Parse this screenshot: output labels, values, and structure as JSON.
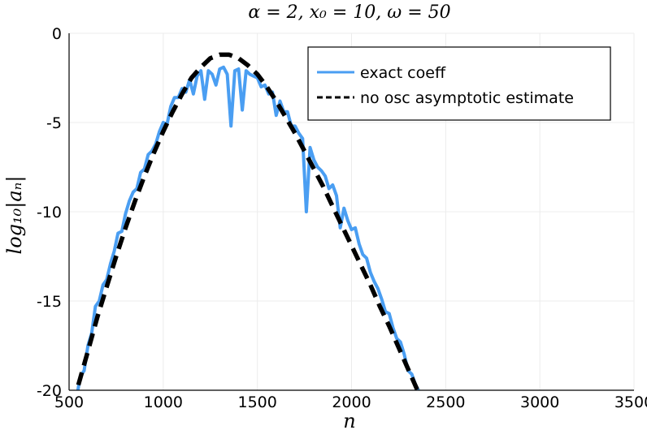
{
  "chart_data": {
    "type": "line",
    "title": "α = 2, x₀ = 10, ω = 50",
    "xlabel": "n",
    "ylabel": "log₁₀|aₙ|",
    "xlim": [
      500,
      3500
    ],
    "ylim": [
      -20,
      0
    ],
    "xticks": [
      500,
      1000,
      1500,
      2000,
      2500,
      3000,
      3500
    ],
    "xtick_labels": [
      "500",
      "1000",
      "1500",
      "2000",
      "2500",
      "3000",
      "3500"
    ],
    "yticks": [
      0,
      -5,
      -10,
      -15,
      -20
    ],
    "ytick_labels": [
      "0",
      "-5",
      "-10",
      "-15",
      "-20"
    ],
    "grid": true,
    "legend_position": "top-right",
    "series": [
      {
        "name": "exact coeff",
        "color": "#4a9ef2",
        "style": "solid",
        "x": [
          540,
          560,
          580,
          600,
          620,
          640,
          660,
          680,
          700,
          720,
          740,
          760,
          780,
          800,
          820,
          840,
          860,
          880,
          900,
          920,
          940,
          960,
          980,
          1000,
          1020,
          1040,
          1060,
          1080,
          1100,
          1120,
          1140,
          1160,
          1180,
          1200,
          1220,
          1240,
          1260,
          1280,
          1300,
          1320,
          1340,
          1360,
          1380,
          1400,
          1420,
          1440,
          1460,
          1480,
          1500,
          1520,
          1540,
          1560,
          1580,
          1600,
          1620,
          1640,
          1660,
          1680,
          1700,
          1720,
          1740,
          1760,
          1780,
          1800,
          1820,
          1840,
          1860,
          1880,
          1900,
          1920,
          1940,
          1960,
          1980,
          2000,
          2020,
          2040,
          2060,
          2080,
          2100,
          2120,
          2140,
          2160,
          2180,
          2200,
          2220,
          2240,
          2260,
          2280,
          2300,
          2320,
          2340,
          2360,
          2380
        ],
        "y": [
          -20.4,
          -19.2,
          -18.9,
          -17.5,
          -16.8,
          -15.3,
          -15.0,
          -14.1,
          -13.8,
          -12.9,
          -12.2,
          -11.2,
          -11.1,
          -10.1,
          -9.4,
          -8.9,
          -8.7,
          -7.8,
          -7.6,
          -6.8,
          -6.6,
          -6.2,
          -5.5,
          -5.0,
          -5.1,
          -4.1,
          -3.6,
          -3.6,
          -3.1,
          -3.3,
          -2.6,
          -3.4,
          -2.4,
          -2.1,
          -3.7,
          -2.1,
          -2.3,
          -2.9,
          -2.0,
          -1.9,
          -2.3,
          -5.2,
          -2.1,
          -2.0,
          -4.3,
          -2.1,
          -2.3,
          -2.4,
          -2.5,
          -3.0,
          -2.9,
          -3.4,
          -3.3,
          -4.6,
          -3.8,
          -4.4,
          -4.4,
          -5.2,
          -5.2,
          -5.6,
          -5.9,
          -10.0,
          -6.4,
          -7.1,
          -7.5,
          -7.7,
          -8.0,
          -8.7,
          -8.5,
          -9.1,
          -10.9,
          -9.8,
          -10.5,
          -11.0,
          -10.9,
          -11.8,
          -12.4,
          -12.6,
          -13.4,
          -13.9,
          -14.3,
          -14.9,
          -15.6,
          -15.7,
          -16.5,
          -17.1,
          -17.3,
          -18.0,
          -18.9,
          -19.1,
          -19.7,
          -20.1,
          -20.5
        ]
      },
      {
        "name": "no osc asymptotic estimate",
        "color": "#000000",
        "style": "dashed",
        "x": [
          520,
          560,
          600,
          650,
          700,
          750,
          800,
          850,
          900,
          950,
          1000,
          1050,
          1100,
          1150,
          1200,
          1250,
          1300,
          1350,
          1400,
          1450,
          1500,
          1550,
          1600,
          1650,
          1700,
          1750,
          1800,
          1850,
          1900,
          1950,
          2000,
          2050,
          2100,
          2150,
          2200,
          2250,
          2300,
          2350,
          2400
        ],
        "y": [
          -20.8,
          -19.3,
          -17.8,
          -15.9,
          -14.2,
          -12.5,
          -10.9,
          -9.4,
          -8.0,
          -6.7,
          -5.5,
          -4.4,
          -3.4,
          -2.5,
          -1.9,
          -1.4,
          -1.2,
          -1.2,
          -1.4,
          -1.8,
          -2.3,
          -3.0,
          -3.8,
          -4.7,
          -5.6,
          -6.6,
          -7.6,
          -8.6,
          -9.7,
          -10.8,
          -11.9,
          -13.0,
          -14.1,
          -15.3,
          -16.4,
          -17.6,
          -18.8,
          -20.0,
          -21.2
        ]
      }
    ]
  }
}
